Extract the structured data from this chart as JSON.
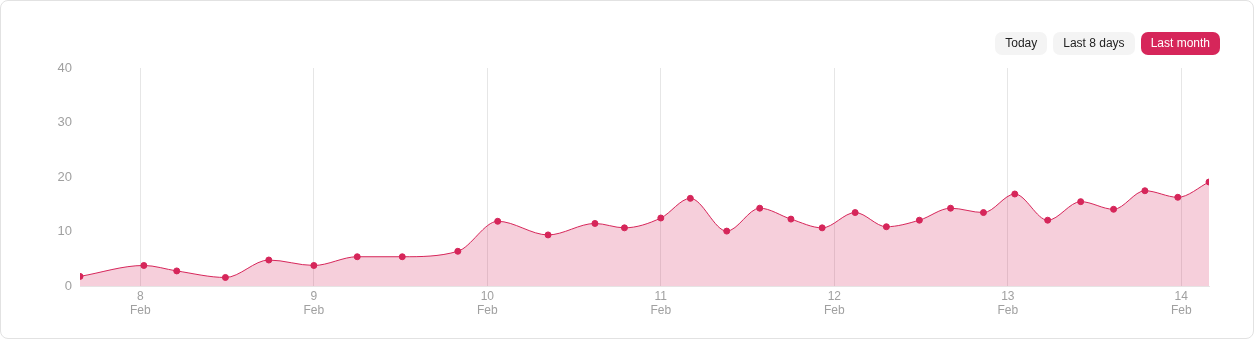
{
  "chart_data": {
    "type": "area",
    "annotations": [
      "Today",
      "Last 8 days",
      "Last month"
    ],
    "x": [
      "--02-07T15:39",
      "--02-08T00:29",
      "--02-08T05:02",
      "--02-08T11:46",
      "--02-08T17:46",
      "--02-09T00:00",
      "--02-09T06:00",
      "--02-09T12:14",
      "--02-09T19:55",
      "--02-10T01:26",
      "--02-10T08:24",
      "--02-10T14:53",
      "--02-10T18:58",
      "--02-11T00:00",
      "--02-11T04:05",
      "--02-11T09:07",
      "--02-11T13:41",
      "--02-11T18:00",
      "--02-11T22:19",
      "--02-12T02:53",
      "--02-12T07:12",
      "--02-12T11:46",
      "--02-12T16:05",
      "--02-12T20:38",
      "--02-13T00:58",
      "--02-13T05:31",
      "--02-13T10:05",
      "--02-13T14:38",
      "--02-13T18:58",
      "--02-13T23:31",
      "--02-14T03:50"
    ],
    "series": [
      {
        "color": "#d6265a",
        "values": [
          1.8,
          3.8,
          2.8,
          1.6,
          4.8,
          3.8,
          5.4,
          5.4,
          6.4,
          11.9,
          9.4,
          11.5,
          10.7,
          12.5,
          16.1,
          10.1,
          14.3,
          12.3,
          10.7,
          13.5,
          10.9,
          12.1,
          14.3,
          13.5,
          16.9,
          12.1,
          15.5,
          14.1,
          17.5,
          16.3,
          19.1
        ]
      }
    ],
    "xlim": [
      "--02-07T15:39",
      "--02-14T03:50"
    ],
    "xticks": [
      {
        "value": "--02-08",
        "label": "8 Feb"
      },
      {
        "value": "--02-09",
        "label": "9 Feb"
      },
      {
        "value": "--02-10",
        "label": "10 Feb"
      },
      {
        "value": "--02-11",
        "label": "11 Feb"
      },
      {
        "value": "--02-12",
        "label": "12 Feb"
      },
      {
        "value": "--02-13",
        "label": "13 Feb"
      },
      {
        "value": "--02-14",
        "label": "14 Feb"
      }
    ],
    "ylim": [
      0,
      40
    ],
    "yticks": [
      0,
      10,
      20,
      30,
      40
    ],
    "grid": "x",
    "legend": false,
    "marker": "circle",
    "line_style": "solid"
  }
}
